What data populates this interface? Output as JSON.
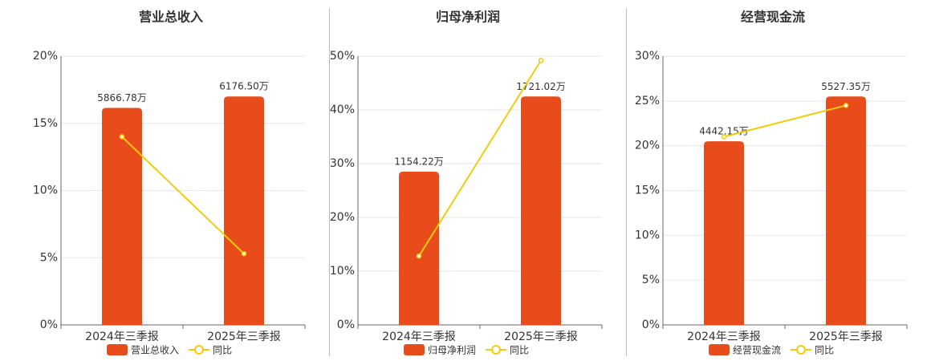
{
  "chart_data": [
    {
      "type": "combo",
      "title": "营业总收入",
      "categories": [
        "2024年三季报",
        "2025年三季报"
      ],
      "series": [
        {
          "name": "营业总收入",
          "type": "bar",
          "axis": "y2",
          "color": "#e84c1a",
          "values": [
            5866.78,
            6176.5
          ],
          "value_labels": [
            "5866.78万",
            "6176.50万"
          ]
        },
        {
          "name": "同比",
          "type": "line",
          "color": "#f2cc0c",
          "values": [
            14.0,
            5.3
          ]
        }
      ],
      "ylim": [
        0,
        20
      ],
      "yticks": [
        {
          "value": 0,
          "label": "0%"
        },
        {
          "value": 5,
          "label": "5%"
        },
        {
          "value": 10,
          "label": "10%"
        },
        {
          "value": 15,
          "label": "15%"
        },
        {
          "value": 20,
          "label": "20%"
        }
      ],
      "y2lim": [
        0,
        7266
      ],
      "grid": true
    },
    {
      "type": "combo",
      "title": "归母净利润",
      "categories": [
        "2024年三季报",
        "2025年三季报"
      ],
      "series": [
        {
          "name": "归母净利润",
          "type": "bar",
          "axis": "y2",
          "color": "#e84c1a",
          "values": [
            1154.22,
            1721.02
          ],
          "value_labels": [
            "1154.22万",
            "1721.02万"
          ]
        },
        {
          "name": "同比",
          "type": "line",
          "color": "#f2cc0c",
          "values": [
            12.8,
            49.2
          ]
        }
      ],
      "ylim": [
        0,
        50
      ],
      "yticks": [
        {
          "value": 0,
          "label": "0%"
        },
        {
          "value": 10,
          "label": "10%"
        },
        {
          "value": 20,
          "label": "20%"
        },
        {
          "value": 30,
          "label": "30%"
        },
        {
          "value": 40,
          "label": "40%"
        },
        {
          "value": 50,
          "label": "50%"
        }
      ],
      "y2lim": [
        0,
        2025
      ],
      "grid": true
    },
    {
      "type": "combo",
      "title": "经营现金流",
      "categories": [
        "2024年三季报",
        "2025年三季报"
      ],
      "series": [
        {
          "name": "经营现金流",
          "type": "bar",
          "axis": "y2",
          "color": "#e84c1a",
          "values": [
            4442.15,
            5527.35
          ],
          "value_labels": [
            "4442.15万",
            "5527.35万"
          ]
        },
        {
          "name": "同比",
          "type": "line",
          "color": "#f2cc0c",
          "values": [
            21.0,
            24.5
          ]
        }
      ],
      "ylim": [
        0,
        30
      ],
      "yticks": [
        {
          "value": 0,
          "label": "0%"
        },
        {
          "value": 5,
          "label": "5%"
        },
        {
          "value": 10,
          "label": "10%"
        },
        {
          "value": 15,
          "label": "15%"
        },
        {
          "value": 20,
          "label": "20%"
        },
        {
          "value": 25,
          "label": "25%"
        },
        {
          "value": 30,
          "label": "30%"
        }
      ],
      "y2lim": [
        0,
        6503
      ],
      "grid": true
    }
  ]
}
